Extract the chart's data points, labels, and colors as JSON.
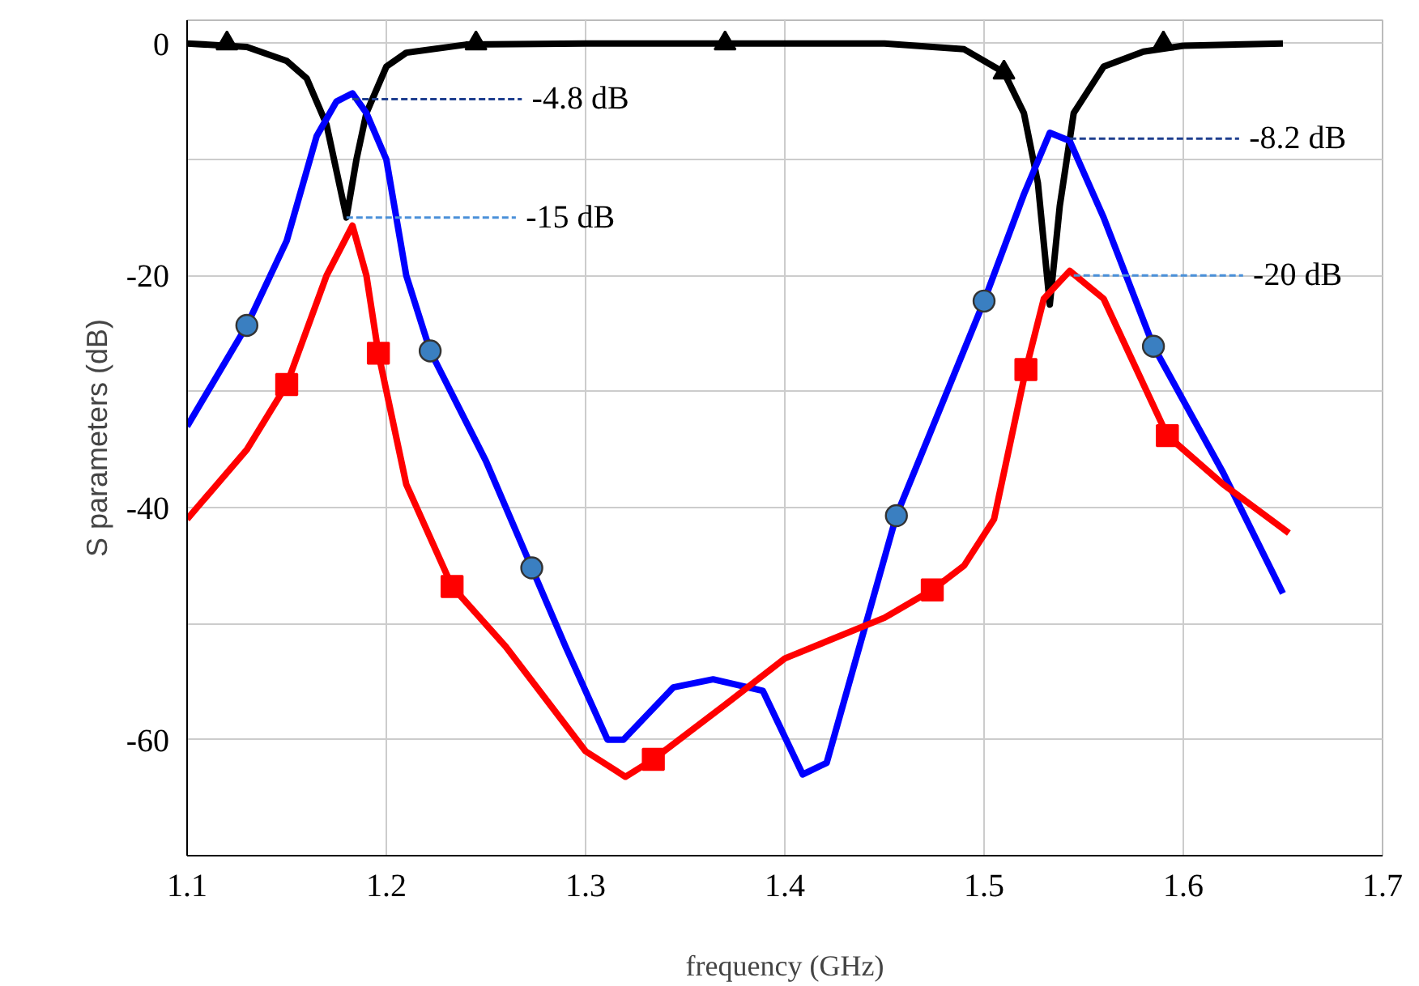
{
  "chart_data": {
    "type": "line",
    "xlabel": "frequency (GHz)",
    "ylabel": "S parameters (dB)",
    "xlim": [
      1.1,
      1.7
    ],
    "xticks": [
      1.1,
      1.2,
      1.3,
      1.4,
      1.5,
      1.6,
      1.7
    ],
    "ylim": [
      -70,
      2
    ],
    "yticks": [
      {
        "value": -70,
        "label": null
      },
      -60,
      {
        "value": -50,
        "label": null
      },
      -40,
      {
        "value": -30,
        "label": null
      },
      -20,
      {
        "value": -10,
        "label": null
      },
      0
    ],
    "grid": true,
    "line_style": "solid",
    "series": [
      {
        "color": "#000000",
        "x": [
          1.1,
          1.13,
          1.15,
          1.16,
          1.17,
          1.175,
          1.18,
          1.185,
          1.19,
          1.2,
          1.21,
          1.24,
          1.3,
          1.45,
          1.49,
          1.51,
          1.52,
          1.527,
          1.533,
          1.538,
          1.545,
          1.56,
          1.58,
          1.6,
          1.65
        ],
        "values": [
          0,
          -0.3,
          -1.5,
          -3,
          -7,
          -11,
          -15,
          -10,
          -6,
          -2,
          -0.8,
          -0.1,
          0,
          0,
          -0.5,
          -2.5,
          -6,
          -12,
          -22.5,
          -14,
          -6,
          -2,
          -0.7,
          -0.2,
          0
        ]
      },
      {
        "color": "#0000ff",
        "x": [
          1.1,
          1.13,
          1.15,
          1.165,
          1.175,
          1.183,
          1.19,
          1.2,
          1.21,
          1.222,
          1.25,
          1.273,
          1.29,
          1.311,
          1.319,
          1.344,
          1.364,
          1.389,
          1.409,
          1.421,
          1.456,
          1.5,
          1.52,
          1.533,
          1.543,
          1.56,
          1.585,
          1.62,
          1.65
        ],
        "values": [
          -33,
          -24.3,
          -17,
          -8,
          -5,
          -4.3,
          -6,
          -10,
          -20,
          -26.5,
          -36,
          -45.2,
          -52,
          -60,
          -60,
          -55.5,
          -54.8,
          -55.8,
          -63,
          -62,
          -40.7,
          -22.2,
          -13,
          -7.7,
          -8.4,
          -15,
          -26.1,
          -37,
          -47.4
        ]
      },
      {
        "color": "#ff0000",
        "x": [
          1.1,
          1.13,
          1.15,
          1.17,
          1.183,
          1.19,
          1.196,
          1.21,
          1.233,
          1.26,
          1.3,
          1.32,
          1.334,
          1.37,
          1.4,
          1.45,
          1.474,
          1.49,
          1.505,
          1.521,
          1.53,
          1.543,
          1.56,
          1.592,
          1.62,
          1.653
        ],
        "values": [
          -41,
          -35,
          -29.4,
          -20,
          -15.7,
          -20,
          -26.7,
          -38,
          -46.8,
          -52,
          -61,
          -63.2,
          -61.7,
          -57,
          -53,
          -49.5,
          -47.1,
          -45,
          -41,
          -28.1,
          -22,
          -19.6,
          -22,
          -33.8,
          -38,
          -42.2
        ]
      },
      {
        "type": "scatter",
        "marker": "triangle",
        "color": "#000000",
        "x": [
          1.12,
          1.245,
          1.37,
          1.51,
          1.59
        ],
        "values": [
          0,
          0,
          0,
          -2.5,
          0
        ]
      },
      {
        "type": "scatter",
        "marker": "circle",
        "color": "#3a7fc1",
        "x": [
          1.13,
          1.222,
          1.273,
          1.456,
          1.5,
          1.585
        ],
        "values": [
          -24.3,
          -26.5,
          -45.2,
          -40.7,
          -22.2,
          -26.1
        ]
      },
      {
        "type": "scatter",
        "marker": "square",
        "color": "#ff0000",
        "x": [
          1.15,
          1.196,
          1.233,
          1.334,
          1.474,
          1.521,
          1.592
        ],
        "values": [
          -29.4,
          -26.7,
          -46.8,
          -61.7,
          -47.1,
          -28.1,
          -33.8
        ]
      }
    ],
    "annotations": [
      {
        "text": "-4.8 dB",
        "x": 1.183,
        "y": -4.8
      },
      {
        "text": "-15 dB",
        "x": 1.18,
        "y": -15
      },
      {
        "text": "-8.2 dB",
        "x": 1.543,
        "y": -8.2
      },
      {
        "text": "-20 dB",
        "x": 1.545,
        "y": -20
      }
    ]
  }
}
